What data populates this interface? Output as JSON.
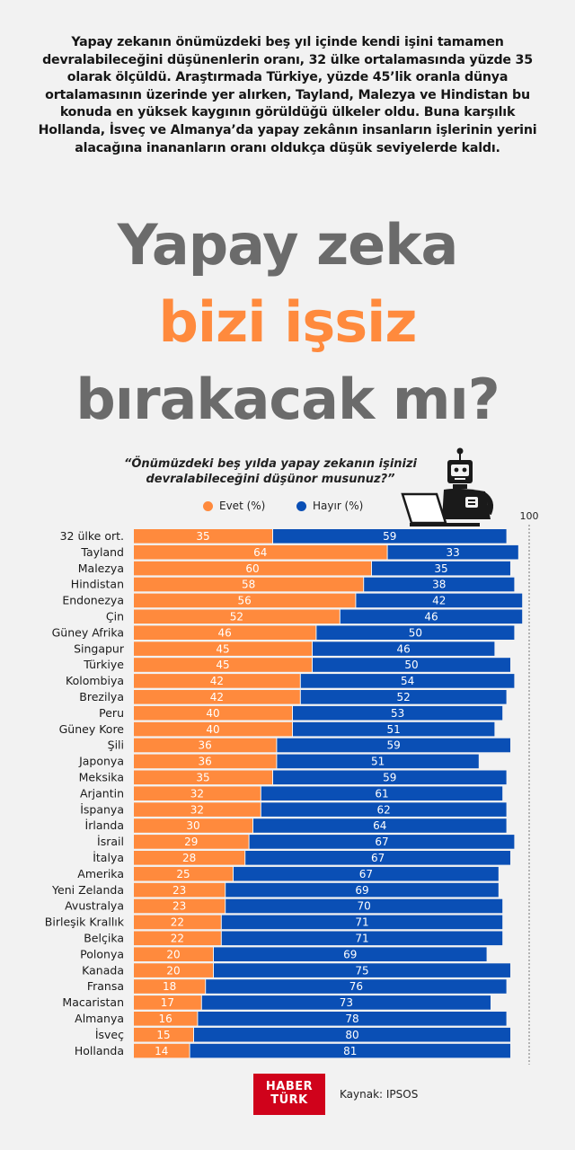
{
  "intro": "Yapay zekanın önümüzdeki beş yıl içinde kendi işini tamamen devralabileceğini düşünenlerin oranı, 32 ülke ortalamasında yüzde 35 olarak ölçüldü. Araştırmada Türkiye, yüzde 45’lik oranla dünya ortalamasının üzerinde yer alırken, Tayland, Malezya ve Hindistan bu konuda en yüksek kaygının görüldüğü ülkeler oldu. Buna karşılık Hollanda, İsveç ve Almanya’da yapay zekânın insanların işlerinin yerini alacağına inananların oranı oldukça düşük seviyelerde kaldı.",
  "headline": {
    "line1": "Yapay zeka",
    "line2": "bizi işsiz",
    "line3": "bırakacak mı?"
  },
  "colors": {
    "evet": "#ff8a3d",
    "hayir": "#0a4fb5",
    "headline_gray": "#6b6b6b",
    "brand_red": "#d0021b"
  },
  "chart_data": {
    "type": "bar",
    "orientation": "horizontal",
    "stacked": true,
    "title": "“Önümüzdeki beş yılda yapay zekanın işinizi devralabileceğini düşünor musunuz?”",
    "xlim": [
      0,
      100
    ],
    "max_tick_label": "100",
    "legend": {
      "placement": "top-center"
    },
    "categories": [
      "32 ülke ort.",
      "Tayland",
      "Malezya",
      "Hindistan",
      "Endonezya",
      "Çin",
      "Güney Afrika",
      "Singapur",
      "Türkiye",
      "Kolombiya",
      "Brezilya",
      "Peru",
      "Güney Kore",
      "Şili",
      "Japonya",
      "Meksika",
      "Arjantin",
      "İspanya",
      "İrlanda",
      "İsrail",
      "İtalya",
      "Amerika",
      "Yeni Zelanda",
      "Avustralya",
      "Birleşik Krallık",
      "Belçika",
      "Polonya",
      "Kanada",
      "Fransa",
      "Macaristan",
      "Almanya",
      "İsveç",
      "Hollanda"
    ],
    "series": [
      {
        "name": "Evet (%)",
        "color": "#ff8a3d",
        "values": [
          35,
          64,
          60,
          58,
          56,
          52,
          46,
          45,
          45,
          42,
          42,
          40,
          40,
          36,
          36,
          35,
          32,
          32,
          30,
          29,
          28,
          25,
          23,
          23,
          22,
          22,
          20,
          20,
          18,
          17,
          16,
          15,
          14
        ]
      },
      {
        "name": "Hayır (%)",
        "color": "#0a4fb5",
        "values": [
          59,
          33,
          35,
          38,
          42,
          46,
          50,
          46,
          50,
          54,
          52,
          53,
          51,
          59,
          51,
          59,
          61,
          62,
          64,
          67,
          67,
          67,
          69,
          70,
          71,
          71,
          69,
          75,
          76,
          73,
          78,
          80,
          81
        ]
      }
    ]
  },
  "footer": {
    "logo_line1": "HABER",
    "logo_line2": "TÜRK",
    "source": "Kaynak: IPSOS"
  }
}
